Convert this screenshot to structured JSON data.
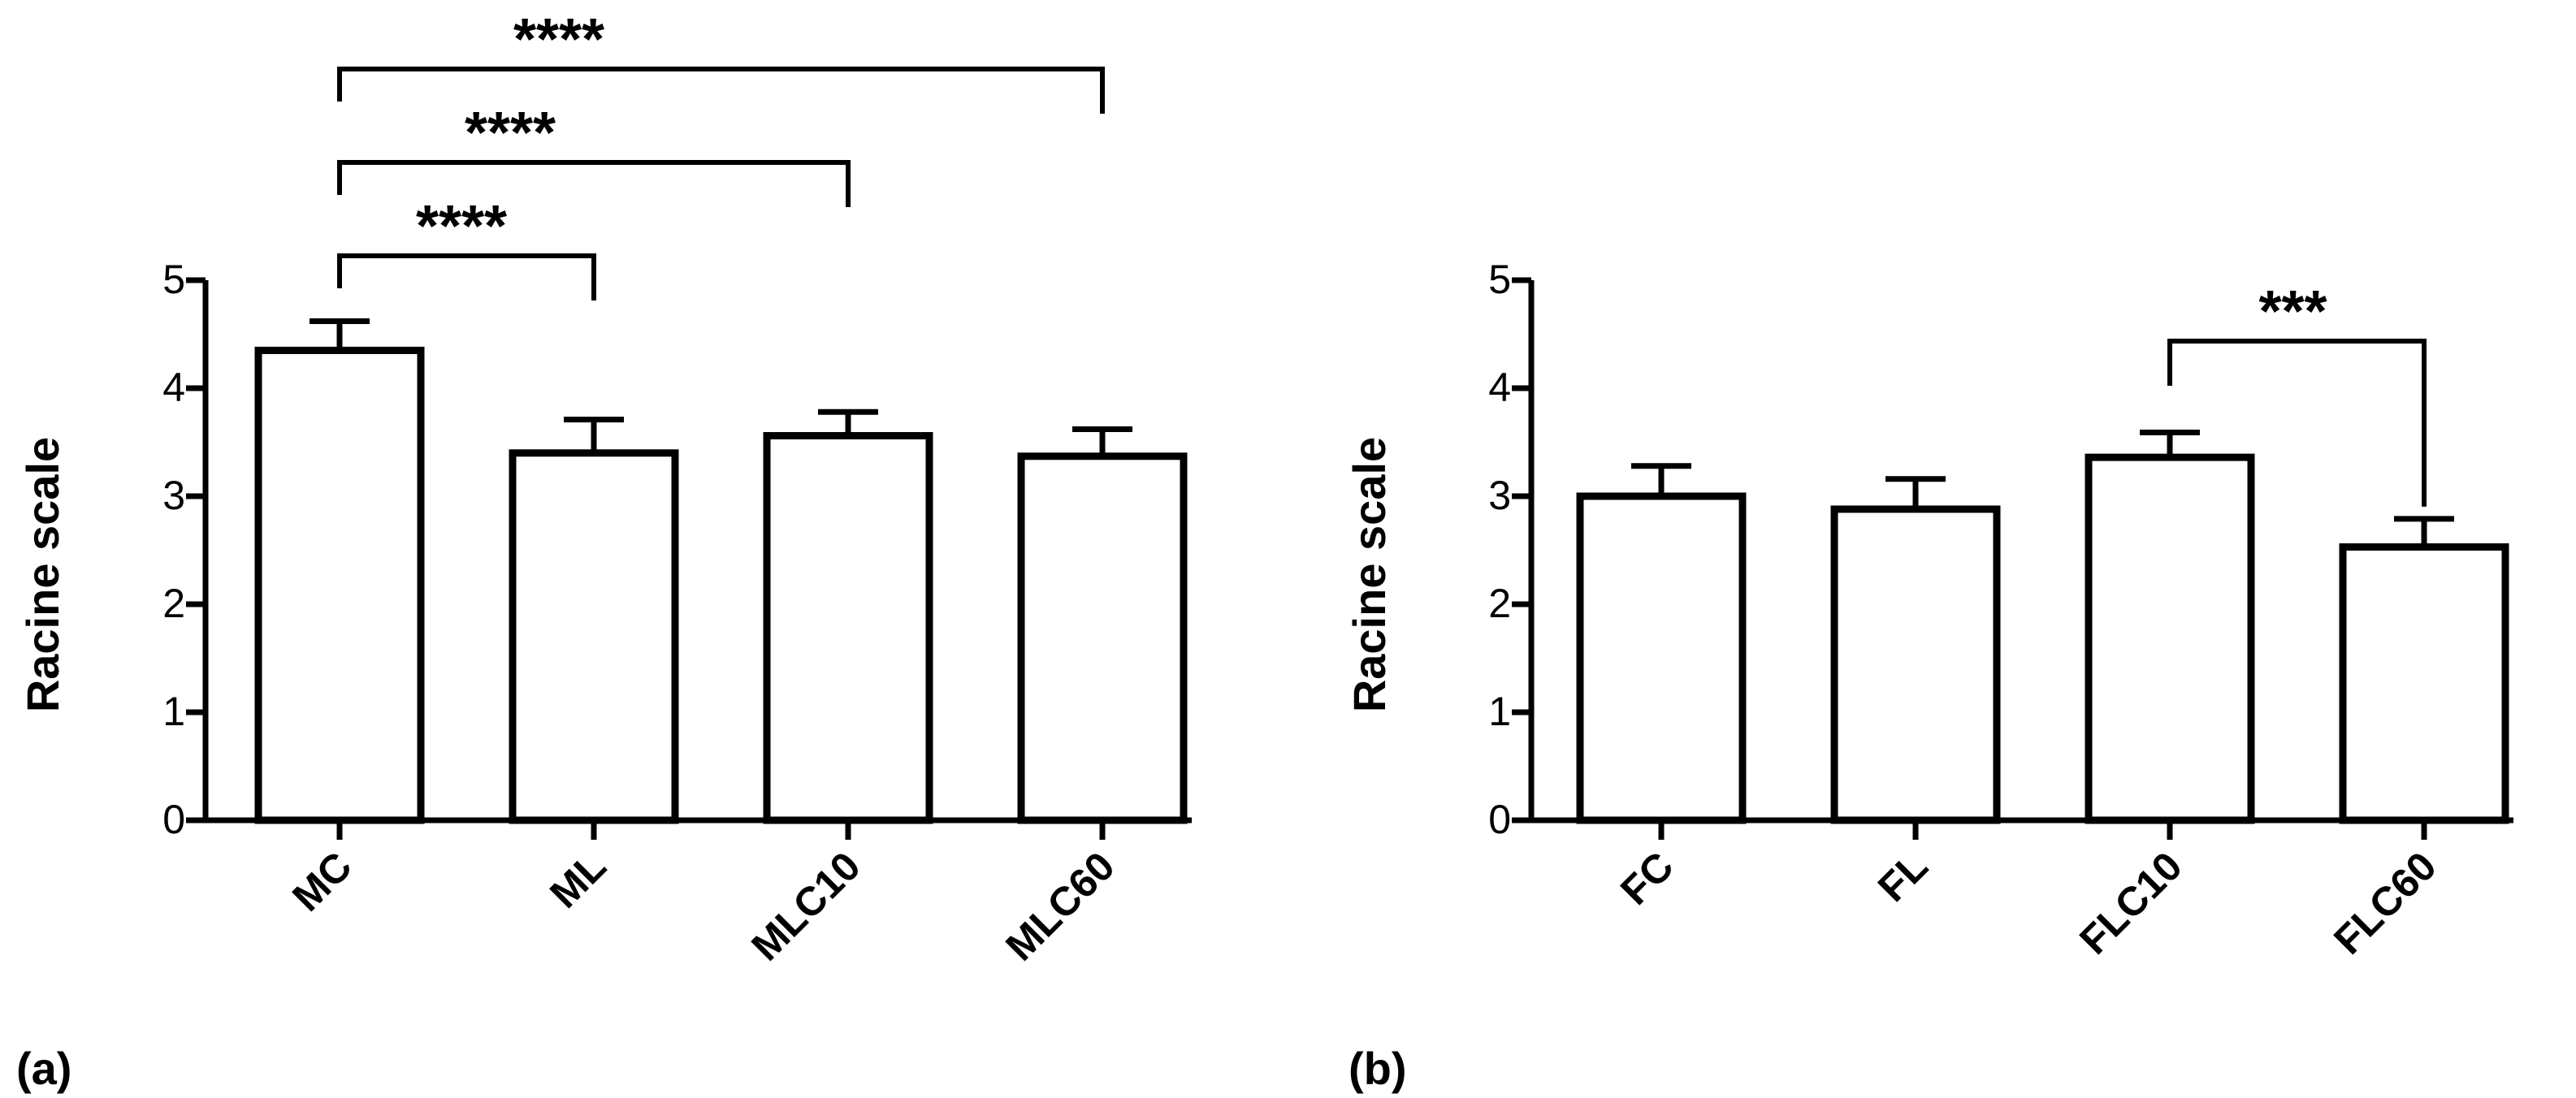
{
  "chart_data": [
    {
      "type": "bar",
      "panel_label": "(a)",
      "ylabel": "Racine scale",
      "ylim": [
        0,
        5
      ],
      "yticks": [
        "0",
        "1",
        "2",
        "3",
        "4",
        "5"
      ],
      "categories": [
        "MC",
        "ML",
        "MLC10",
        "MLC60"
      ],
      "values": [
        4.35,
        3.4,
        3.56,
        3.37
      ],
      "errors": [
        0.27,
        0.31,
        0.22,
        0.25
      ],
      "significance": [
        {
          "from": "MC",
          "to": "ML",
          "label": "****"
        },
        {
          "from": "MC",
          "to": "MLC10",
          "label": "****"
        },
        {
          "from": "MC",
          "to": "MLC60",
          "label": "****"
        }
      ]
    },
    {
      "type": "bar",
      "panel_label": "(b)",
      "ylabel": "Racine scale",
      "ylim": [
        0,
        5
      ],
      "yticks": [
        "0",
        "1",
        "2",
        "3",
        "4",
        "5"
      ],
      "categories": [
        "FC",
        "FL",
        "FLC10",
        "FLC60"
      ],
      "values": [
        3.0,
        2.88,
        3.36,
        2.53
      ],
      "errors": [
        0.28,
        0.28,
        0.23,
        0.26
      ],
      "significance": [
        {
          "from": "FLC10",
          "to": "FLC60",
          "label": "***"
        }
      ]
    }
  ],
  "colors": {
    "bar_fill": "#ffffff",
    "stroke": "#000000"
  }
}
